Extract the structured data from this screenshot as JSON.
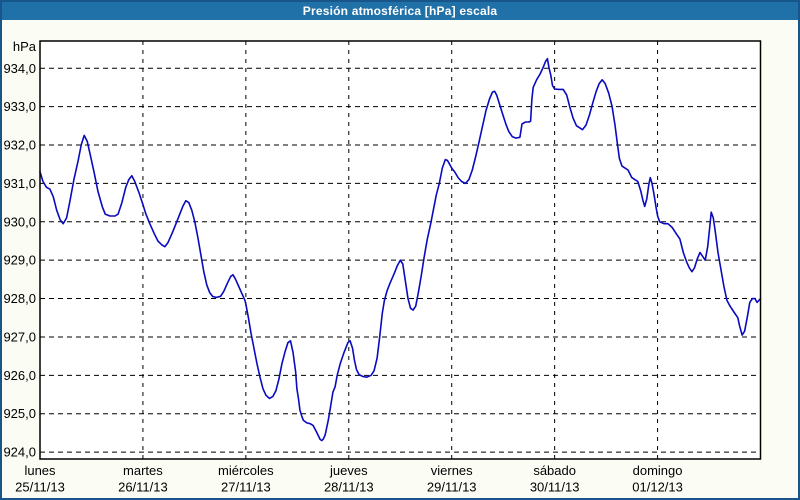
{
  "window": {
    "title": "Presión atmosférica [hPa] escala"
  },
  "colors": {
    "window_border": "#17558A",
    "title_bar": "#2171A9",
    "title_text": "#FFFFFF",
    "background": "#FBFDF5",
    "plot_background": "#FFFFFF",
    "plot_frame": "#000000",
    "grid": "#000000",
    "line": "#0A0ABF",
    "label_text": "#000000"
  },
  "chart_data": {
    "type": "line",
    "title": "Presión atmosférica [hPa] escala",
    "ylabel": "hPa",
    "xlabel": "",
    "grid": true,
    "legend_position": "none",
    "ylim": [
      923.82,
      934.71
    ],
    "x_range_hours": [
      0,
      168
    ],
    "y_ticks": [
      "934,0",
      "933,0",
      "932,0",
      "931,0",
      "930,0",
      "929,0",
      "928,0",
      "927,0",
      "926,0",
      "925,0",
      "924,0"
    ],
    "y_tick_values": [
      934,
      933,
      932,
      931,
      930,
      929,
      928,
      927,
      926,
      925,
      924
    ],
    "x_days": [
      {
        "name": "lunes",
        "date": "25/11/13"
      },
      {
        "name": "martes",
        "date": "26/11/13"
      },
      {
        "name": "miércoles",
        "date": "27/11/13"
      },
      {
        "name": "jueves",
        "date": "28/11/13"
      },
      {
        "name": "viernes",
        "date": "29/11/13"
      },
      {
        "name": "sábado",
        "date": "30/11/13"
      },
      {
        "name": "domingo",
        "date": "01/12/13"
      }
    ],
    "series": [
      {
        "name": "Presión atmosférica",
        "unit": "hPa",
        "points": [
          [
            0,
            931.3
          ],
          [
            0.7,
            931.05
          ],
          [
            1.5,
            930.9
          ],
          [
            2.3,
            930.85
          ],
          [
            3.1,
            930.65
          ],
          [
            3.9,
            930.3
          ],
          [
            4.7,
            930.05
          ],
          [
            5.4,
            929.95
          ],
          [
            6.2,
            930.1
          ],
          [
            7,
            930.55
          ],
          [
            7.9,
            931.1
          ],
          [
            8.9,
            931.6
          ],
          [
            9.6,
            932
          ],
          [
            10.3,
            932.25
          ],
          [
            11,
            932.1
          ],
          [
            11.7,
            931.75
          ],
          [
            12.6,
            931.3
          ],
          [
            13.5,
            930.8
          ],
          [
            14.5,
            930.4
          ],
          [
            15.2,
            930.2
          ],
          [
            16.3,
            930.15
          ],
          [
            17.5,
            930.15
          ],
          [
            18.2,
            930.2
          ],
          [
            19.1,
            930.5
          ],
          [
            20,
            930.9
          ],
          [
            20.7,
            931.1
          ],
          [
            21.4,
            931.2
          ],
          [
            22.1,
            931.05
          ],
          [
            23.1,
            930.75
          ],
          [
            24,
            930.45
          ],
          [
            24.7,
            930.2
          ],
          [
            25.6,
            929.95
          ],
          [
            26.6,
            929.7
          ],
          [
            27.5,
            929.5
          ],
          [
            28.4,
            929.4
          ],
          [
            29.1,
            929.35
          ],
          [
            29.8,
            929.45
          ],
          [
            30.8,
            929.7
          ],
          [
            31.7,
            929.95
          ],
          [
            32.6,
            930.2
          ],
          [
            33.3,
            930.4
          ],
          [
            34,
            930.55
          ],
          [
            34.7,
            930.5
          ],
          [
            35.4,
            930.3
          ],
          [
            36.1,
            930
          ],
          [
            36.8,
            929.6
          ],
          [
            37.5,
            929.15
          ],
          [
            38.2,
            928.7
          ],
          [
            38.9,
            928.35
          ],
          [
            39.6,
            928.15
          ],
          [
            40.3,
            928.05
          ],
          [
            41.2,
            928.03
          ],
          [
            42.1,
            928.06
          ],
          [
            42.9,
            928.2
          ],
          [
            43.7,
            928.4
          ],
          [
            44.5,
            928.58
          ],
          [
            45,
            928.62
          ],
          [
            45.6,
            928.5
          ],
          [
            46.4,
            928.3
          ],
          [
            47.2,
            928.1
          ],
          [
            47.8,
            927.95
          ],
          [
            48,
            927.85
          ],
          [
            48.6,
            927.5
          ],
          [
            49.2,
            927.1
          ],
          [
            49.9,
            926.7
          ],
          [
            50.6,
            926.3
          ],
          [
            51.3,
            925.95
          ],
          [
            52,
            925.65
          ],
          [
            52.7,
            925.48
          ],
          [
            53.5,
            925.4
          ],
          [
            54.3,
            925.45
          ],
          [
            55,
            925.6
          ],
          [
            55.7,
            925.9
          ],
          [
            56.4,
            926.3
          ],
          [
            57.1,
            926.6
          ],
          [
            57.8,
            926.85
          ],
          [
            58.4,
            926.9
          ],
          [
            59,
            926.6
          ],
          [
            59.6,
            926.1
          ],
          [
            59.9,
            925.65
          ],
          [
            60.3,
            925.37
          ],
          [
            60.6,
            925.1
          ],
          [
            61,
            924.95
          ],
          [
            61.4,
            924.83
          ],
          [
            62.2,
            924.76
          ],
          [
            63,
            924.74
          ],
          [
            63.7,
            924.69
          ],
          [
            64.5,
            924.52
          ],
          [
            65.3,
            924.33
          ],
          [
            65.7,
            924.3
          ],
          [
            66.1,
            924.35
          ],
          [
            66.5,
            924.45
          ],
          [
            67.2,
            924.82
          ],
          [
            67.6,
            925.08
          ],
          [
            68.3,
            925.56
          ],
          [
            68.8,
            925.7
          ],
          [
            69.3,
            926
          ],
          [
            70,
            926.3
          ],
          [
            70.9,
            926.6
          ],
          [
            71.8,
            926.85
          ],
          [
            72.3,
            926.9
          ],
          [
            72.9,
            926.7
          ],
          [
            73.3,
            926.4
          ],
          [
            73.8,
            926.15
          ],
          [
            74.4,
            926.02
          ],
          [
            75.3,
            925.97
          ],
          [
            76.2,
            925.95
          ],
          [
            77.2,
            926
          ],
          [
            77.9,
            926.12
          ],
          [
            78.6,
            926.45
          ],
          [
            79.2,
            927
          ],
          [
            79.8,
            927.6
          ],
          [
            80.3,
            927.95
          ],
          [
            80.9,
            928.2
          ],
          [
            81.6,
            928.4
          ],
          [
            82.6,
            928.65
          ],
          [
            83.3,
            928.85
          ],
          [
            84,
            929
          ],
          [
            84.6,
            928.9
          ],
          [
            85.2,
            928.45
          ],
          [
            85.8,
            928
          ],
          [
            86.4,
            927.75
          ],
          [
            87,
            927.7
          ],
          [
            87.6,
            927.8
          ],
          [
            88.2,
            928.15
          ],
          [
            88.9,
            928.6
          ],
          [
            89.6,
            929.1
          ],
          [
            90.3,
            929.55
          ],
          [
            91,
            929.9
          ],
          [
            91.7,
            930.3
          ],
          [
            92.4,
            930.7
          ],
          [
            93.1,
            931
          ],
          [
            93.8,
            931.4
          ],
          [
            94.5,
            931.62
          ],
          [
            95,
            931.6
          ],
          [
            95.5,
            931.5
          ],
          [
            96,
            931.4
          ],
          [
            96.7,
            931.3
          ],
          [
            97.5,
            931.15
          ],
          [
            98.3,
            931.05
          ],
          [
            99.2,
            931
          ],
          [
            100,
            931.1
          ],
          [
            100.8,
            931.35
          ],
          [
            101.6,
            931.7
          ],
          [
            102.4,
            932.1
          ],
          [
            103.2,
            932.5
          ],
          [
            104,
            932.9
          ],
          [
            104.8,
            933.2
          ],
          [
            105.5,
            933.38
          ],
          [
            106,
            933.4
          ],
          [
            106.5,
            933.3
          ],
          [
            107.2,
            933.05
          ],
          [
            107.9,
            932.8
          ],
          [
            108.6,
            932.55
          ],
          [
            109.3,
            932.35
          ],
          [
            110.1,
            932.22
          ],
          [
            111,
            932.18
          ],
          [
            111.9,
            932.2
          ],
          [
            112.4,
            932.55
          ],
          [
            113.2,
            932.6
          ],
          [
            114,
            932.6
          ],
          [
            114.4,
            932.62
          ],
          [
            114.7,
            933.2
          ],
          [
            115,
            933.5
          ],
          [
            115.8,
            933.7
          ],
          [
            116.6,
            933.85
          ],
          [
            117.3,
            934.02
          ],
          [
            117.9,
            934.18
          ],
          [
            118.3,
            934.25
          ],
          [
            118.7,
            934
          ],
          [
            119.1,
            933.82
          ],
          [
            119.5,
            933.55
          ],
          [
            120,
            933.46
          ],
          [
            121,
            933.45
          ],
          [
            122,
            933.45
          ],
          [
            122.8,
            933.3
          ],
          [
            123.5,
            933
          ],
          [
            124.3,
            932.7
          ],
          [
            125.1,
            932.5
          ],
          [
            125.8,
            932.45
          ],
          [
            126.5,
            932.4
          ],
          [
            127.3,
            932.52
          ],
          [
            128.1,
            932.78
          ],
          [
            128.9,
            933.1
          ],
          [
            129.7,
            933.4
          ],
          [
            130.4,
            933.6
          ],
          [
            131.1,
            933.7
          ],
          [
            131.8,
            933.6
          ],
          [
            132.6,
            933.35
          ],
          [
            133.4,
            933
          ],
          [
            134.1,
            932.5
          ],
          [
            134.6,
            932.05
          ],
          [
            135.1,
            931.65
          ],
          [
            135.7,
            931.45
          ],
          [
            136.4,
            931.4
          ],
          [
            137.1,
            931.35
          ],
          [
            138,
            931.15
          ],
          [
            138.7,
            931.1
          ],
          [
            139.4,
            931.05
          ],
          [
            140.1,
            930.8
          ],
          [
            140.6,
            930.55
          ],
          [
            141,
            930.4
          ],
          [
            141.5,
            930.6
          ],
          [
            142,
            931
          ],
          [
            142.3,
            931.15
          ],
          [
            142.7,
            931
          ],
          [
            143.2,
            930.7
          ],
          [
            143.6,
            930.4
          ],
          [
            144,
            930.15
          ],
          [
            144.5,
            930
          ],
          [
            145.5,
            929.95
          ],
          [
            146.4,
            929.95
          ],
          [
            147.4,
            929.85
          ],
          [
            148.3,
            929.7
          ],
          [
            149.2,
            929.55
          ],
          [
            150,
            929.2
          ],
          [
            150.8,
            928.95
          ],
          [
            151.4,
            928.8
          ],
          [
            152,
            928.7
          ],
          [
            152.6,
            928.8
          ],
          [
            153.3,
            929.05
          ],
          [
            153.9,
            929.2
          ],
          [
            154.5,
            929.1
          ],
          [
            155.1,
            929
          ],
          [
            155.7,
            929.35
          ],
          [
            156.2,
            929.9
          ],
          [
            156.5,
            930.25
          ],
          [
            157,
            930.1
          ],
          [
            157.5,
            929.7
          ],
          [
            158.1,
            929.2
          ],
          [
            158.8,
            928.75
          ],
          [
            159.5,
            928.3
          ],
          [
            160.2,
            927.95
          ],
          [
            160.9,
            927.8
          ],
          [
            161.8,
            927.65
          ],
          [
            162.7,
            927.5
          ],
          [
            163.1,
            927.3
          ],
          [
            163.7,
            927.05
          ],
          [
            164.3,
            927.15
          ],
          [
            164.9,
            927.5
          ],
          [
            165.5,
            927.9
          ],
          [
            166.1,
            928
          ],
          [
            166.7,
            928
          ],
          [
            167.2,
            927.9
          ],
          [
            167.6,
            927.95
          ],
          [
            168,
            928
          ]
        ]
      }
    ]
  }
}
